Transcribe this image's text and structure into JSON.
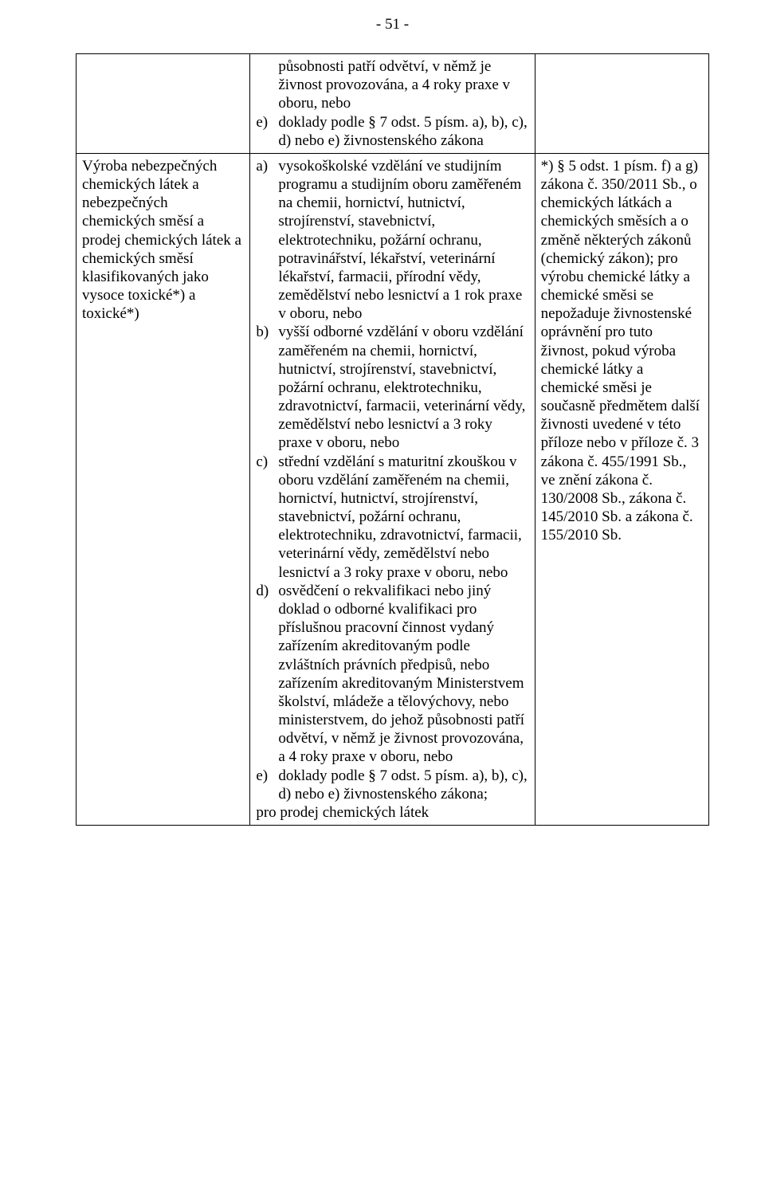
{
  "page_number": "- 51 -",
  "row1": {
    "col2": {
      "intro_lines": "působnosti patří odvětví, v němž je živnost provozována, a 4 roky praxe v oboru, nebo",
      "e_marker": "e)",
      "e_text": "doklady podle § 7 odst. 5 písm. a), b), c), d) nebo e) živnostenského zákona"
    }
  },
  "row2": {
    "col1": "Výroba nebezpečných chemických látek a nebezpečných chemických směsí a prodej chemických látek a chemických směsí klasifikovaných jako vysoce toxické*) a toxické*)",
    "col2": {
      "a_marker": "a)",
      "a_text": "vysokoškolské vzdělání ve studijním programu a studijním oboru zaměřeném na chemii, hornictví, hutnictví, strojírenství, stavebnictví, elektrotechniku, požární ochranu, potravinářství, lékařství, veterinární lékařství, farmacii, přírodní vědy, zemědělství nebo lesnictví a 1 rok praxe v oboru, nebo",
      "b_marker": "b)",
      "b_text": "vyšší odborné vzdělání v oboru vzdělání zaměřeném na chemii, hornictví, hutnictví, strojírenství, stavebnictví, požární ochranu, elektrotechniku, zdravotnictví, farmacii, veterinární vědy, zemědělství nebo lesnictví a 3 roky praxe v oboru, nebo",
      "c_marker": "c)",
      "c_text": "střední vzdělání s maturitní zkouškou v oboru vzdělání zaměřeném na chemii, hornictví, hutnictví, strojírenství, stavebnictví, požární ochranu, elektrotechniku, zdravotnictví, farmacii, veterinární vědy, zemědělství nebo lesnictví a 3 roky praxe v oboru, nebo",
      "d_marker": "d)",
      "d_text": "osvědčení o rekvalifikaci nebo jiný doklad o odborné kvalifikaci pro příslušnou pracovní činnost vydaný zařízením akreditovaným  podle zvláštních právních předpisů, nebo zařízením akreditovaným Ministerstvem školství, mládeže a tělovýchovy, nebo ministerstvem, do jehož působnosti patří odvětví, v němž je živnost provozována, a 4 roky praxe v oboru, nebo",
      "e_marker": "e)",
      "e_text": "doklady podle § 7 odst. 5 písm. a), b), c), d) nebo e) živnostenského zákona;",
      "tail": "pro prodej chemických látek"
    },
    "col3": "*) § 5 odst. 1 písm. f) a g) zákona č. 350/2011 Sb., o chemických látkách a chemických směsích a o změně některých zákonů (chemický zákon); pro výrobu chemické látky a chemické směsi se nepožaduje živnostenské oprávnění pro tuto živnost, pokud výroba chemické látky a chemické směsi je současně předmětem další živnosti uvedené v této příloze nebo v příloze č. 3 zákona č. 455/1991 Sb., ve znění zákona č. 130/2008 Sb., zákona č. 145/2010 Sb. a zákona č. 155/2010 Sb."
  }
}
